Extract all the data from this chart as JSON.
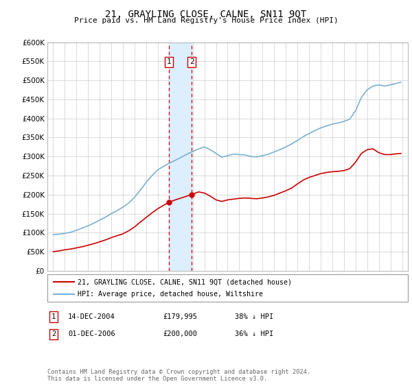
{
  "title": "21, GRAYLING CLOSE, CALNE, SN11 9QT",
  "subtitle": "Price paid vs. HM Land Registry's House Price Index (HPI)",
  "legend_label_red": "21, GRAYLING CLOSE, CALNE, SN11 9QT (detached house)",
  "legend_label_blue": "HPI: Average price, detached house, Wiltshire",
  "sale1_x": 2004.958,
  "sale1_price": 179995,
  "sale2_x": 2006.917,
  "sale2_price": 200000,
  "footer": "Contains HM Land Registry data © Crown copyright and database right 2024.\nThis data is licensed under the Open Government Licence v3.0.",
  "red_color": "#cc0000",
  "blue_color": "#7ab0d4",
  "shade_color": "#ddeeff",
  "grid_color": "#cccccc",
  "ylim": [
    0,
    600000
  ],
  "yticks": [
    0,
    50000,
    100000,
    150000,
    200000,
    250000,
    300000,
    350000,
    400000,
    450000,
    500000,
    550000,
    600000
  ],
  "xlim": [
    1994.5,
    2025.5
  ],
  "xticks": [
    1995,
    1996,
    1997,
    1998,
    1999,
    2000,
    2001,
    2002,
    2003,
    2004,
    2005,
    2006,
    2007,
    2008,
    2009,
    2010,
    2011,
    2012,
    2013,
    2014,
    2015,
    2016,
    2017,
    2018,
    2019,
    2020,
    2021,
    2022,
    2023,
    2024,
    2025
  ],
  "years_hpi": [
    1995,
    1995.5,
    1996,
    1996.5,
    1997,
    1997.5,
    1998,
    1998.5,
    1999,
    1999.5,
    2000,
    2000.5,
    2001,
    2001.5,
    2002,
    2002.5,
    2003,
    2003.5,
    2004,
    2004.5,
    2004.958,
    2005.5,
    2006,
    2006.5,
    2006.917,
    2007.5,
    2008,
    2008.5,
    2009,
    2009.5,
    2010,
    2010.5,
    2011,
    2011.5,
    2012,
    2012.5,
    2013,
    2013.5,
    2014,
    2014.5,
    2015,
    2015.5,
    2016,
    2016.5,
    2017,
    2017.5,
    2018,
    2018.5,
    2019,
    2019.5,
    2020,
    2020.5,
    2021,
    2021.5,
    2022,
    2022.5,
    2023,
    2023.5,
    2024,
    2024.5,
    2024.9
  ],
  "hpi_values": [
    95000,
    96000,
    98000,
    101000,
    106000,
    112000,
    118000,
    125000,
    133000,
    141000,
    150000,
    158000,
    167000,
    178000,
    193000,
    212000,
    232000,
    250000,
    265000,
    274000,
    282000,
    290000,
    298000,
    306000,
    312000,
    320000,
    325000,
    318000,
    308000,
    298000,
    302000,
    306000,
    305000,
    304000,
    300000,
    299000,
    302000,
    306000,
    312000,
    318000,
    325000,
    333000,
    342000,
    352000,
    360000,
    368000,
    375000,
    380000,
    385000,
    388000,
    392000,
    398000,
    420000,
    455000,
    475000,
    485000,
    488000,
    485000,
    488000,
    492000,
    495000
  ],
  "years_red": [
    1995,
    1995.5,
    1996,
    1996.5,
    1997,
    1997.5,
    1998,
    1998.5,
    1999,
    1999.5,
    2000,
    2000.5,
    2001,
    2001.5,
    2002,
    2002.5,
    2003,
    2003.5,
    2004,
    2004.5,
    2004.958,
    2005.5,
    2006,
    2006.5,
    2006.917,
    2007.5,
    2008,
    2008.5,
    2009,
    2009.5,
    2010,
    2010.5,
    2011,
    2011.5,
    2012,
    2012.5,
    2013,
    2013.5,
    2014,
    2014.5,
    2015,
    2015.5,
    2016,
    2016.5,
    2017,
    2017.5,
    2018,
    2018.5,
    2019,
    2019.5,
    2020,
    2020.5,
    2021,
    2021.5,
    2022,
    2022.5,
    2023,
    2023.5,
    2024,
    2024.5,
    2024.9
  ],
  "red_values": [
    50000,
    52000,
    55000,
    57000,
    60000,
    63000,
    67000,
    71000,
    76000,
    81000,
    87000,
    92000,
    97000,
    105000,
    115000,
    128000,
    140000,
    152000,
    163000,
    172000,
    179995,
    186000,
    191000,
    196000,
    200000,
    207000,
    204000,
    196000,
    186000,
    182000,
    186000,
    188000,
    190000,
    191000,
    190000,
    189000,
    191000,
    194000,
    198000,
    204000,
    210000,
    217000,
    228000,
    238000,
    245000,
    250000,
    255000,
    258000,
    260000,
    261000,
    263000,
    268000,
    285000,
    308000,
    318000,
    320000,
    310000,
    305000,
    305000,
    307000,
    308000
  ]
}
